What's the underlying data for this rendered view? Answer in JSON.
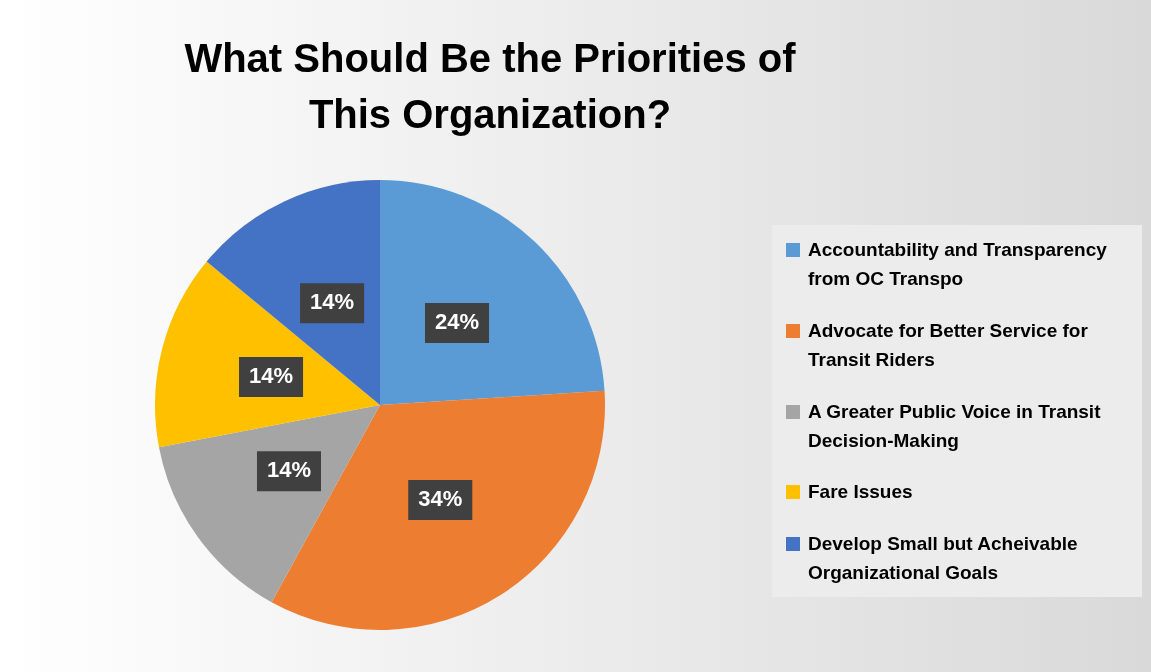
{
  "chart_data": {
    "type": "pie",
    "title": "What Should Be the Priorities of This Organization?",
    "categories": [
      "Accountability and Transparency from OC Transpo",
      "Advocate for Better Service for Transit Riders",
      "A Greater Public Voice in Transit Decision-Making",
      "Fare Issues",
      "Develop Small but Acheivable Organizational Goals"
    ],
    "values": [
      24,
      34,
      14,
      14,
      14
    ],
    "colors": [
      "#5b9bd5",
      "#ed7d31",
      "#a5a5a5",
      "#ffc000",
      "#4472c4"
    ],
    "value_labels": [
      "24%",
      "34%",
      "14%",
      "14%",
      "14%"
    ],
    "legend": "right"
  }
}
